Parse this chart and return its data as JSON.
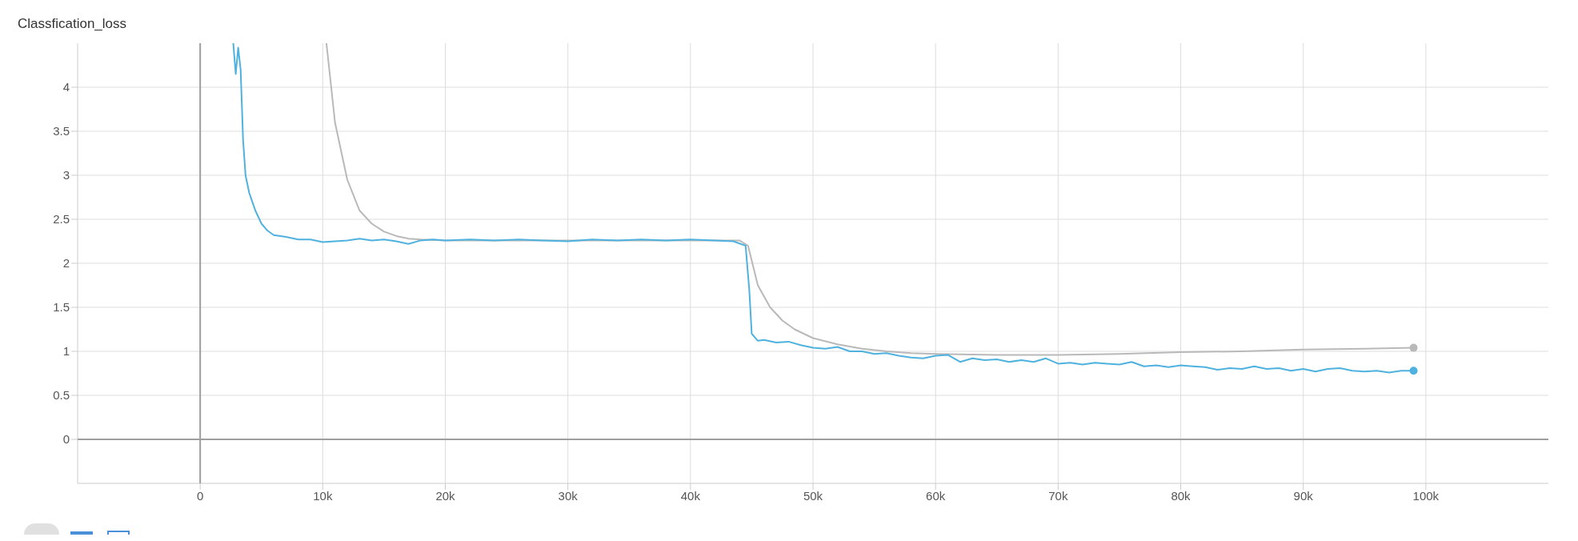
{
  "chart_data": {
    "type": "line",
    "title": "Classfication_loss",
    "xlim": [
      -10000,
      110000
    ],
    "xticks": [
      0,
      {
        "value": 10000,
        "label": "10k"
      },
      {
        "value": 20000,
        "label": "20k"
      },
      {
        "value": 30000,
        "label": "30k"
      },
      {
        "value": 40000,
        "label": "40k"
      },
      {
        "value": 50000,
        "label": "50k"
      },
      {
        "value": 60000,
        "label": "60k"
      },
      {
        "value": 70000,
        "label": "70k"
      },
      {
        "value": 80000,
        "label": "80k"
      },
      {
        "value": 90000,
        "label": "90k"
      },
      {
        "value": 100000,
        "label": "100k"
      }
    ],
    "ylim": [
      -0.5,
      4.5
    ],
    "yticks": [
      0,
      0.5,
      1,
      1.5,
      2,
      2.5,
      3,
      3.5,
      4
    ],
    "grid": true,
    "marker": "none",
    "line_style": "solid",
    "series": [
      {
        "color": "#b9b9b9",
        "x": [
          10300,
          11000,
          12000,
          13000,
          14000,
          15000,
          16000,
          17000,
          18000,
          20000,
          25000,
          30000,
          35000,
          40000,
          44000,
          44700,
          45500,
          46500,
          47500,
          48500,
          50000,
          52000,
          54000,
          56000,
          58000,
          60000,
          65000,
          70000,
          75000,
          80000,
          85000,
          90000,
          95000,
          99000
        ],
        "values": [
          4.5,
          3.6,
          2.95,
          2.6,
          2.45,
          2.36,
          2.31,
          2.28,
          2.27,
          2.26,
          2.26,
          2.26,
          2.26,
          2.26,
          2.26,
          2.2,
          1.75,
          1.5,
          1.35,
          1.25,
          1.15,
          1.08,
          1.03,
          1.0,
          0.98,
          0.97,
          0.96,
          0.96,
          0.97,
          0.99,
          1.0,
          1.02,
          1.03,
          1.04
        ]
      },
      {
        "color": "#4fb2de",
        "x": [
          2700,
          2900,
          3100,
          3300,
          3500,
          3700,
          4000,
          4500,
          5000,
          5500,
          6000,
          7000,
          8000,
          9000,
          10000,
          11000,
          12000,
          13000,
          14000,
          15000,
          16000,
          17000,
          18000,
          19000,
          20000,
          22000,
          24000,
          26000,
          28000,
          30000,
          32000,
          34000,
          36000,
          38000,
          40000,
          42000,
          43500,
          44500,
          44800,
          45000,
          45500,
          46000,
          47000,
          48000,
          49000,
          50000,
          51000,
          52000,
          53000,
          54000,
          55000,
          56000,
          57000,
          58000,
          59000,
          60000,
          61000,
          62000,
          63000,
          64000,
          65000,
          66000,
          67000,
          68000,
          69000,
          70000,
          71000,
          72000,
          73000,
          74000,
          75000,
          76000,
          77000,
          78000,
          79000,
          80000,
          81000,
          82000,
          83000,
          84000,
          85000,
          86000,
          87000,
          88000,
          89000,
          90000,
          91000,
          92000,
          93000,
          94000,
          95000,
          96000,
          97000,
          98000,
          99000
        ],
        "values": [
          4.5,
          4.15,
          4.45,
          4.2,
          3.4,
          3.0,
          2.8,
          2.6,
          2.45,
          2.37,
          2.32,
          2.3,
          2.27,
          2.27,
          2.24,
          2.25,
          2.26,
          2.28,
          2.26,
          2.27,
          2.25,
          2.22,
          2.26,
          2.27,
          2.26,
          2.27,
          2.26,
          2.27,
          2.26,
          2.25,
          2.27,
          2.26,
          2.27,
          2.26,
          2.27,
          2.26,
          2.25,
          2.2,
          1.7,
          1.2,
          1.12,
          1.13,
          1.1,
          1.11,
          1.07,
          1.04,
          1.03,
          1.05,
          1.0,
          1.0,
          0.97,
          0.98,
          0.95,
          0.93,
          0.92,
          0.95,
          0.96,
          0.88,
          0.92,
          0.9,
          0.91,
          0.88,
          0.9,
          0.88,
          0.92,
          0.86,
          0.87,
          0.85,
          0.87,
          0.86,
          0.85,
          0.88,
          0.83,
          0.84,
          0.82,
          0.84,
          0.83,
          0.82,
          0.79,
          0.81,
          0.8,
          0.83,
          0.8,
          0.81,
          0.78,
          0.8,
          0.77,
          0.8,
          0.81,
          0.78,
          0.77,
          0.78,
          0.76,
          0.78,
          0.78
        ]
      }
    ]
  }
}
